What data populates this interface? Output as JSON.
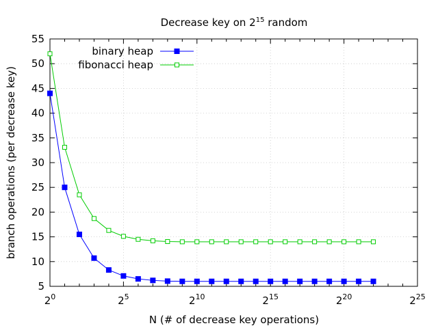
{
  "chart_data": {
    "type": "line",
    "title": {
      "base": "Decrease key on 2",
      "exp": "15",
      "rest": " random"
    },
    "xlabel": "N (# of decrease key operations)",
    "ylabel": "branch operations (per decrease key)",
    "xscale": "log2",
    "xlim_exponent": [
      0,
      25
    ],
    "ylim": [
      5,
      55
    ],
    "grid": true,
    "legend_position": "top-left",
    "x_ticks": [
      {
        "base": "2",
        "exp": "0",
        "v": 0
      },
      {
        "base": "2",
        "exp": "5",
        "v": 5
      },
      {
        "base": "2",
        "exp": "10",
        "v": 10
      },
      {
        "base": "2",
        "exp": "15",
        "v": 15
      },
      {
        "base": "2",
        "exp": "20",
        "v": 20
      },
      {
        "base": "2",
        "exp": "25",
        "v": 25
      }
    ],
    "y_ticks": [
      {
        "label": "5",
        "v": 5
      },
      {
        "label": "10",
        "v": 10
      },
      {
        "label": "15",
        "v": 15
      },
      {
        "label": "20",
        "v": 20
      },
      {
        "label": "25",
        "v": 25
      },
      {
        "label": "30",
        "v": 30
      },
      {
        "label": "35",
        "v": 35
      },
      {
        "label": "40",
        "v": 40
      },
      {
        "label": "45",
        "v": 45
      },
      {
        "label": "50",
        "v": 50
      },
      {
        "label": "55",
        "v": 55
      }
    ],
    "x_exponents": [
      0,
      1,
      2,
      3,
      4,
      5,
      6,
      7,
      8,
      9,
      10,
      11,
      12,
      13,
      14,
      15,
      16,
      17,
      18,
      19,
      20,
      21,
      22
    ],
    "series": [
      {
        "name": "binary heap",
        "color": "#0000ff",
        "marker": "filled-square",
        "values": [
          44,
          25,
          15.5,
          10.7,
          8.3,
          7.1,
          6.5,
          6.2,
          6.05,
          6.0,
          6.0,
          6.0,
          6.0,
          6.0,
          6.0,
          6.0,
          6.0,
          6.0,
          6.0,
          6.0,
          6.0,
          6.0,
          6.0
        ]
      },
      {
        "name": "fibonacci heap",
        "color": "#00cc00",
        "marker": "open-square",
        "values": [
          52,
          33.1,
          23.5,
          18.7,
          16.3,
          15.1,
          14.5,
          14.2,
          14.05,
          14.0,
          14.0,
          14.0,
          14.0,
          14.0,
          14.0,
          14.0,
          14.0,
          14.0,
          14.0,
          14.0,
          14.0,
          14.0,
          14.0
        ]
      }
    ]
  }
}
